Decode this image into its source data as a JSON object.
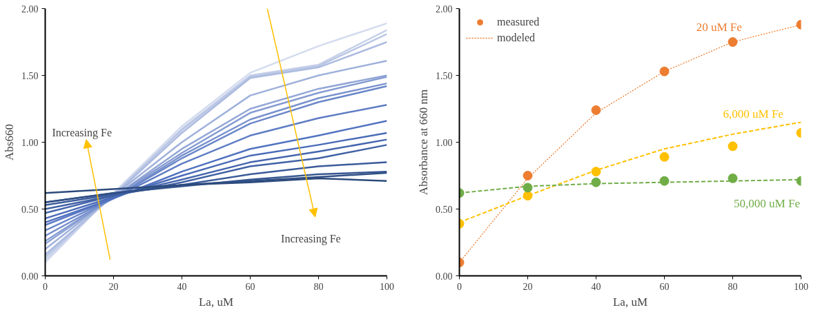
{
  "chart_data": [
    {
      "type": "line",
      "xlabel": "La, uM",
      "ylabel": "Abs660",
      "x": [
        0,
        20,
        40,
        60,
        80,
        100
      ],
      "xlim": [
        0,
        100
      ],
      "ylim": [
        0,
        2
      ],
      "xticks": [
        0,
        20,
        40,
        60,
        80,
        100
      ],
      "yticks": [
        {
          "value": 0,
          "label": "0.00"
        },
        {
          "value": 0.5,
          "label": "0.50"
        },
        {
          "value": 1,
          "label": "1.00"
        },
        {
          "value": 1.5,
          "label": "1.50"
        },
        {
          "value": 2,
          "label": "2.00"
        }
      ],
      "grid": false,
      "legend": false,
      "marker": "none",
      "line_style": "solid",
      "annotations": [
        "Increasing Fe",
        "Increasing Fe"
      ],
      "series": [
        {
          "color": "#d3dbee",
          "values": [
            0.1,
            0.62,
            1.12,
            1.52,
            1.72,
            1.89
          ]
        },
        {
          "color": "#c6d0e9",
          "values": [
            0.12,
            0.61,
            1.1,
            1.5,
            1.58,
            1.84
          ]
        },
        {
          "color": "#b9c6e4",
          "values": [
            0.14,
            0.61,
            1.09,
            1.49,
            1.57,
            1.81
          ]
        },
        {
          "color": "#acbbe0",
          "values": [
            0.16,
            0.6,
            1.07,
            1.48,
            1.56,
            1.75
          ]
        },
        {
          "color": "#9fb1db",
          "values": [
            0.2,
            0.6,
            1.0,
            1.35,
            1.5,
            1.61
          ]
        },
        {
          "color": "#92a6d6",
          "values": [
            0.24,
            0.59,
            0.95,
            1.25,
            1.4,
            1.5
          ]
        },
        {
          "color": "#859cd2",
          "values": [
            0.26,
            0.59,
            0.92,
            1.22,
            1.37,
            1.49
          ]
        },
        {
          "color": "#7891cd",
          "values": [
            0.3,
            0.58,
            0.9,
            1.17,
            1.33,
            1.44
          ]
        },
        {
          "color": "#6b87c9",
          "values": [
            0.34,
            0.58,
            0.88,
            1.14,
            1.3,
            1.42
          ]
        },
        {
          "color": "#5e7cc4",
          "values": [
            0.38,
            0.58,
            0.84,
            1.05,
            1.18,
            1.28
          ]
        },
        {
          "color": "#5172c0",
          "values": [
            0.4,
            0.58,
            0.78,
            0.95,
            1.05,
            1.16
          ]
        },
        {
          "color": "#4a6bb8",
          "values": [
            0.43,
            0.59,
            0.75,
            0.9,
            0.98,
            1.07
          ]
        },
        {
          "color": "#4566ae",
          "values": [
            0.47,
            0.6,
            0.72,
            0.85,
            0.93,
            1.02
          ]
        },
        {
          "color": "#4061a4",
          "values": [
            0.5,
            0.6,
            0.7,
            0.82,
            0.88,
            0.98
          ]
        },
        {
          "color": "#3b5b9a",
          "values": [
            0.53,
            0.61,
            0.68,
            0.76,
            0.82,
            0.85
          ]
        },
        {
          "color": "#365690",
          "values": [
            0.55,
            0.62,
            0.67,
            0.72,
            0.76,
            0.78
          ]
        },
        {
          "color": "#315086",
          "values": [
            0.55,
            0.62,
            0.68,
            0.71,
            0.74,
            0.77
          ]
        },
        {
          "color": "#2c4a7c",
          "values": [
            0.62,
            0.65,
            0.68,
            0.7,
            0.73,
            0.71
          ]
        }
      ]
    },
    {
      "type": "scatter",
      "xlabel": "La, uM",
      "ylabel": "Absorbance at 660 nm",
      "x": [
        0,
        20,
        40,
        60,
        80,
        100
      ],
      "xlim": [
        0,
        100
      ],
      "ylim": [
        0,
        2
      ],
      "xticks": [
        0,
        20,
        40,
        60,
        80,
        100
      ],
      "yticks": [
        {
          "value": 0,
          "label": "0.00"
        },
        {
          "value": 0.5,
          "label": "0.50"
        },
        {
          "value": 1,
          "label": "1.00"
        },
        {
          "value": 1.5,
          "label": "1.50"
        },
        {
          "value": 2,
          "label": "2.00"
        }
      ],
      "grid": false,
      "legend": "top left",
      "marker": "circle",
      "annotations": [
        "20 uM Fe",
        "6,000 uM Fe",
        "50,000 uM Fe"
      ],
      "series": [
        {
          "name": "measured",
          "type": "scatter",
          "color": "#ed7d31",
          "values": [
            0.1,
            0.75,
            1.24,
            1.53,
            1.75,
            1.88
          ]
        },
        {
          "type": "scatter",
          "color": "#ffc000",
          "values": [
            0.39,
            0.6,
            0.78,
            0.89,
            0.97,
            1.07
          ]
        },
        {
          "type": "scatter",
          "color": "#70ad47",
          "values": [
            0.62,
            0.66,
            0.7,
            0.71,
            0.73,
            0.71
          ]
        },
        {
          "name": "modeled",
          "type": "line",
          "marker": "none",
          "line_style": "dotted",
          "color": "#ed7d31",
          "values": [
            0.1,
            0.73,
            1.22,
            1.53,
            1.75,
            1.88
          ]
        },
        {
          "type": "line",
          "marker": "none",
          "line_style": "dashed",
          "color": "#ffc000",
          "values": [
            0.4,
            0.6,
            0.79,
            0.95,
            1.06,
            1.15
          ]
        },
        {
          "type": "line",
          "marker": "none",
          "line_style": "dashed",
          "color": "#70ad47",
          "values": [
            0.62,
            0.67,
            0.69,
            0.7,
            0.71,
            0.72
          ]
        }
      ]
    }
  ]
}
